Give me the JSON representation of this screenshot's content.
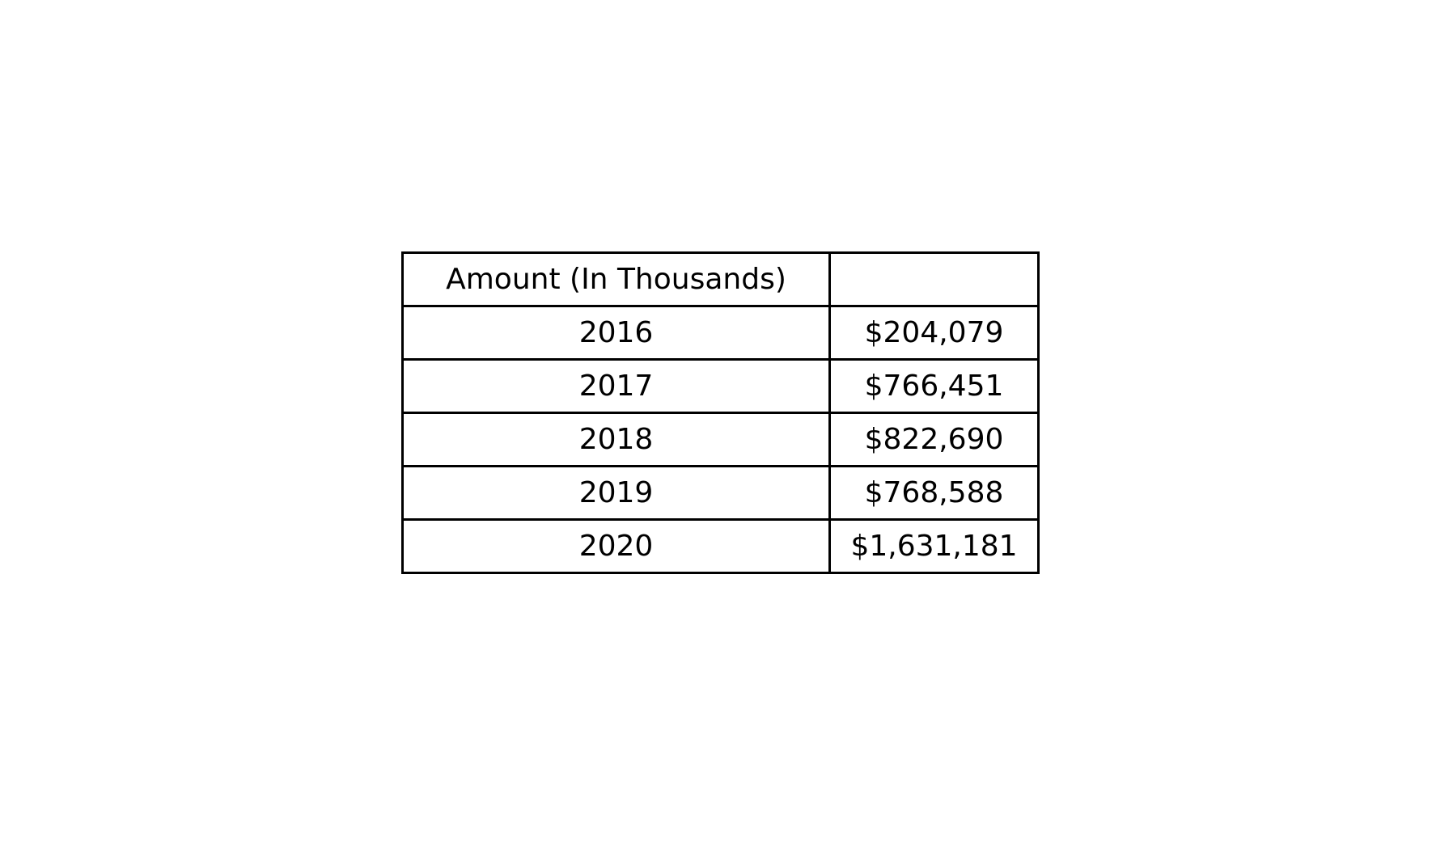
{
  "chart_data": {
    "type": "table",
    "header": [
      "Amount (In Thousands)",
      ""
    ],
    "rows": [
      {
        "year": "2016",
        "amount": "$204,079"
      },
      {
        "year": "2017",
        "amount": "$766,451"
      },
      {
        "year": "2018",
        "amount": "$822,690"
      },
      {
        "year": "2019",
        "amount": "$768,588"
      },
      {
        "year": "2020",
        "amount": "$1,631,181"
      }
    ]
  }
}
